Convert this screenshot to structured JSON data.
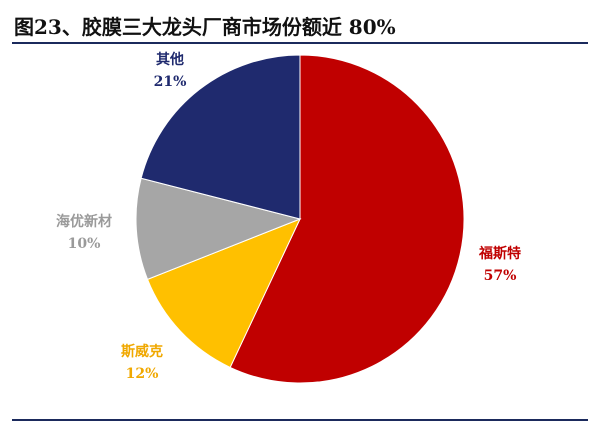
{
  "title": "图23、胶膜三大龙头厂商市场份额近 80%",
  "chart_data": {
    "type": "pie",
    "title": "图23、胶膜三大龙头厂商市场份额近 80%",
    "start_angle_deg": 0,
    "direction": "clockwise",
    "slices": [
      {
        "label": "福斯特",
        "value": 57,
        "value_label": "57%",
        "color": "#c00000",
        "label_color": "#c00000"
      },
      {
        "label": "斯威克",
        "value": 12,
        "value_label": "12%",
        "color": "#ffc000",
        "label_color": "#f0a800"
      },
      {
        "label": "海优新材",
        "value": 10,
        "value_label": "10%",
        "color": "#a6a6a6",
        "label_color": "#9a9a9a"
      },
      {
        "label": "其他",
        "value": 21,
        "value_label": "21%",
        "color": "#1f2a6e",
        "label_color": "#1f2a6e"
      }
    ]
  }
}
